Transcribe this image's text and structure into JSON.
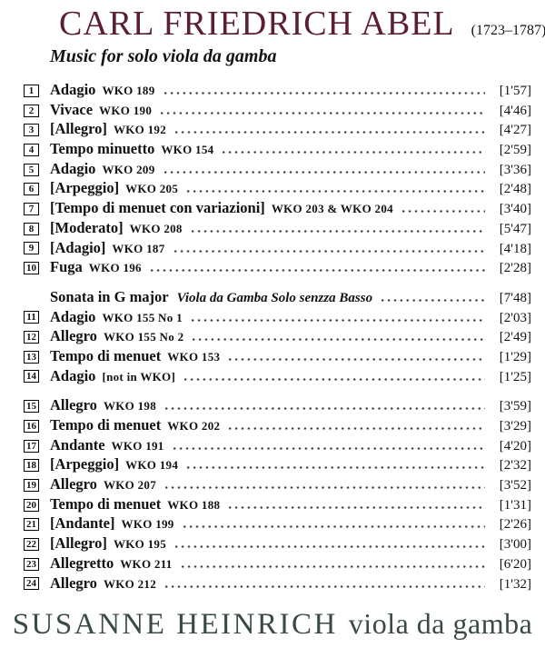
{
  "page": {
    "header": {
      "composer": "CARL FRIEDRICH ABEL",
      "years": "(1723–1787)",
      "album_subtitle": "Music for solo viola da gamba"
    },
    "tracklist": {
      "rows": [
        {
          "type": "track",
          "num": "1",
          "title": "Adagio",
          "wko": "WKO 189",
          "duration": "[1'57]"
        },
        {
          "type": "track",
          "num": "2",
          "title": "Vivace",
          "wko": "WKO 190",
          "duration": "[4'46]"
        },
        {
          "type": "track",
          "num": "3",
          "title": "[Allegro]",
          "wko": "WKO 192",
          "duration": "[4'27]"
        },
        {
          "type": "track",
          "num": "4",
          "title": "Tempo minuetto",
          "wko": "WKO 154",
          "duration": "[2'59]"
        },
        {
          "type": "track",
          "num": "5",
          "title": "Adagio",
          "wko": "WKO 209",
          "duration": "[3'36]"
        },
        {
          "type": "track",
          "num": "6",
          "title": "[Arpeggio]",
          "wko": "WKO 205",
          "duration": "[2'48]"
        },
        {
          "type": "track",
          "num": "7",
          "title": "[Tempo di menuet con variazioni]",
          "wko": "WKO 203 & WKO 204",
          "duration": "[3'40]"
        },
        {
          "type": "track",
          "num": "8",
          "title": "[Moderato]",
          "wko": "WKO 208",
          "duration": "[5'47]"
        },
        {
          "type": "track",
          "num": "9",
          "title": "[Adagio]",
          "wko": "WKO 187",
          "duration": "[4'18]"
        },
        {
          "type": "track",
          "num": "10",
          "title": "Fuga",
          "wko": "WKO 196",
          "duration": "[2'28]"
        },
        {
          "type": "section",
          "num": "",
          "title": "Sonata in G major",
          "subtitle": "Viola da Gamba Solo senzza Basso",
          "duration": "[7'48]",
          "gap_before": true
        },
        {
          "type": "track",
          "num": "11",
          "title": "Adagio",
          "wko": "WKO 155 No 1",
          "duration": "[2'03]"
        },
        {
          "type": "track",
          "num": "12",
          "title": "Allegro",
          "wko": "WKO 155 No 2",
          "duration": "[2'49]"
        },
        {
          "type": "track",
          "num": "13",
          "title": "Tempo di menuet",
          "wko": "WKO 153",
          "duration": "[1'29]"
        },
        {
          "type": "track",
          "num": "14",
          "title": "Adagio",
          "wko": "[not in WKO]",
          "duration": "[1'25]"
        },
        {
          "type": "track",
          "num": "15",
          "title": "Allegro",
          "wko": "WKO 198",
          "duration": "[3'59]",
          "gap_before": true
        },
        {
          "type": "track",
          "num": "16",
          "title": "Tempo di menuet",
          "wko": "WKO 202",
          "duration": "[3'29]"
        },
        {
          "type": "track",
          "num": "17",
          "title": "Andante",
          "wko": "WKO 191",
          "duration": "[4'20]"
        },
        {
          "type": "track",
          "num": "18",
          "title": "[Arpeggio]",
          "wko": "WKO 194",
          "duration": "[2'32]"
        },
        {
          "type": "track",
          "num": "19",
          "title": "Allegro",
          "wko": "WKO 207",
          "duration": "[3'52]"
        },
        {
          "type": "track",
          "num": "20",
          "title": "Tempo di menuet",
          "wko": "WKO 188",
          "duration": "[1'31]"
        },
        {
          "type": "track",
          "num": "21",
          "title": "[Andante]",
          "wko": "WKO 199",
          "duration": "[2'26]"
        },
        {
          "type": "track",
          "num": "22",
          "title": "[Allegro]",
          "wko": "WKO 195",
          "duration": "[3'00]"
        },
        {
          "type": "track",
          "num": "23",
          "title": "Allegretto",
          "wko": "WKO 211",
          "duration": "[6'20]"
        },
        {
          "type": "track",
          "num": "24",
          "title": "Allegro",
          "wko": "WKO 212",
          "duration": "[1'32]"
        }
      ]
    },
    "footer": {
      "performer": "SUSANNE HEINRICH",
      "instrument": "viola da gamba"
    },
    "colors": {
      "title_maroon": "#5b1e32",
      "footer_green": "#3a4c42",
      "text_black": "#121212",
      "background": "#ffffff",
      "dot_leader": "#3d3d3d"
    }
  }
}
